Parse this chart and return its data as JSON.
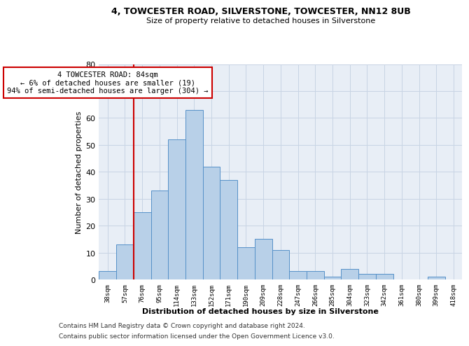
{
  "title1": "4, TOWCESTER ROAD, SILVERSTONE, TOWCESTER, NN12 8UB",
  "title2": "Size of property relative to detached houses in Silverstone",
  "xlabel": "Distribution of detached houses by size in Silverstone",
  "ylabel": "Number of detached properties",
  "categories": [
    "38sqm",
    "57sqm",
    "76sqm",
    "95sqm",
    "114sqm",
    "133sqm",
    "152sqm",
    "171sqm",
    "190sqm",
    "209sqm",
    "228sqm",
    "247sqm",
    "266sqm",
    "285sqm",
    "304sqm",
    "323sqm",
    "342sqm",
    "361sqm",
    "380sqm",
    "399sqm",
    "418sqm"
  ],
  "values": [
    3,
    13,
    25,
    33,
    52,
    63,
    42,
    37,
    12,
    15,
    11,
    3,
    3,
    1,
    4,
    2,
    2,
    0,
    0,
    1,
    0
  ],
  "bar_color": "#b8d0e8",
  "bar_edge_color": "#5590c8",
  "highlight_bar_index": 2,
  "annotation_line1": "4 TOWCESTER ROAD: 84sqm",
  "annotation_line2": "← 6% of detached houses are smaller (19)",
  "annotation_line3": "94% of semi-detached houses are larger (304) →",
  "vline_color": "#cc0000",
  "ylim": [
    0,
    80
  ],
  "yticks": [
    0,
    10,
    20,
    30,
    40,
    50,
    60,
    70,
    80
  ],
  "grid_color": "#c8d4e4",
  "background_color": "#e8eef6",
  "footer1": "Contains HM Land Registry data © Crown copyright and database right 2024.",
  "footer2": "Contains public sector information licensed under the Open Government Licence v3.0."
}
